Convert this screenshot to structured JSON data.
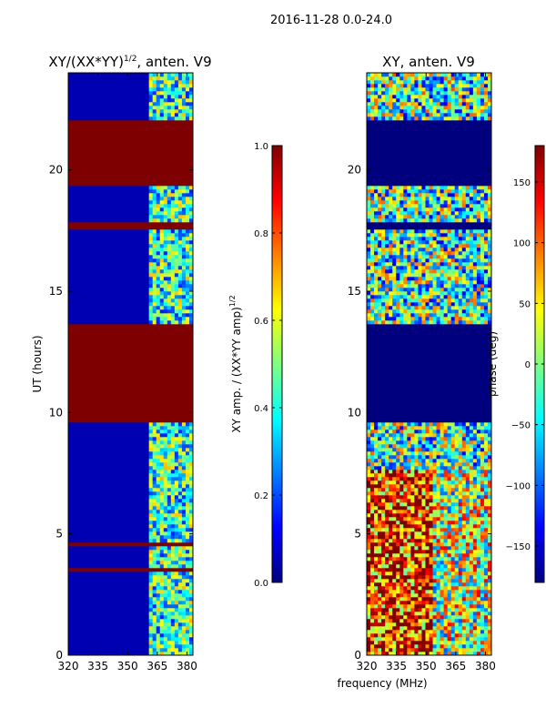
{
  "suptitle": "2016-11-28 0.0-24.0",
  "xlabel_shared": "frequency (MHz)",
  "colors": {
    "jet": [
      "#00007f",
      "#0000ff",
      "#007fff",
      "#00ffff",
      "#7fff7f",
      "#ffff00",
      "#ff7f00",
      "#ff0000",
      "#7f0000"
    ],
    "background": "#ffffff"
  },
  "chart_data": [
    {
      "type": "heatmap",
      "title": "XY/(XX*YY)",
      "title_sup": "1/2",
      "title_suffix": ", anten. V9",
      "xlabel": "",
      "ylabel": "UT (hours)",
      "xlim": [
        320,
        383
      ],
      "ylim": [
        0,
        24
      ],
      "xticks": [
        320,
        335,
        350,
        365,
        380
      ],
      "xtick_labels": [
        "320",
        "335",
        "350",
        "365",
        "380"
      ],
      "yticks": [
        0,
        5,
        10,
        15,
        20
      ],
      "ytick_labels": [
        "0",
        "5",
        "10",
        "15",
        "20"
      ],
      "colorbar": {
        "label": "XY amp. / (XX*YY amp)",
        "label_sup": "1/2",
        "range": [
          0.0,
          1.0
        ],
        "ticks": [
          0.0,
          0.2,
          0.4,
          0.6,
          0.8,
          1.0
        ],
        "tick_labels": [
          "0.0",
          "0.2",
          "0.4",
          "0.6",
          "0.8",
          "1.0"
        ]
      },
      "blocks": [
        {
          "t0": 9.6,
          "t1": 13.7,
          "value": 1.0
        },
        {
          "t0": 19.4,
          "t1": 22.1,
          "value": 1.0
        },
        {
          "t0": 17.5,
          "t1": 17.8,
          "value": 1.0
        },
        {
          "t0": 3.5,
          "t1": 3.65,
          "value": 1.0
        },
        {
          "t0": 4.5,
          "t1": 4.6,
          "value": 1.0
        }
      ],
      "active_band_mhz": [
        361,
        383
      ],
      "outside_band_value": 0.05
    },
    {
      "type": "heatmap",
      "title": "XY, anten. V9",
      "xlabel": "frequency (MHz)",
      "ylabel": "",
      "xlim": [
        320,
        383
      ],
      "ylim": [
        0,
        24
      ],
      "xticks": [
        320,
        335,
        350,
        365,
        380
      ],
      "xtick_labels": [
        "320",
        "335",
        "350",
        "365",
        "380"
      ],
      "yticks": [
        0,
        5,
        10,
        15,
        20
      ],
      "ytick_labels": [
        "0",
        "5",
        "10",
        "15",
        "20"
      ],
      "colorbar": {
        "label": "phase (deg)",
        "range": [
          -180,
          180
        ],
        "ticks": [
          -150,
          -100,
          -50,
          0,
          50,
          100,
          150
        ],
        "tick_labels": [
          "−150",
          "−100",
          "−50",
          "0",
          "50",
          "100",
          "150"
        ]
      },
      "blocks": [
        {
          "t0": 9.6,
          "t1": 13.7,
          "value": -180
        },
        {
          "t0": 19.4,
          "t1": 22.1,
          "value": -180
        },
        {
          "t0": 17.5,
          "t1": 17.8,
          "value": -180
        }
      ]
    }
  ]
}
